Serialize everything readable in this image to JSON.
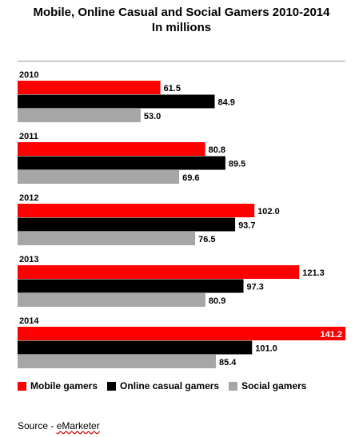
{
  "title_line1": "Mobile, Online Casual and Social Gamers 2010-2014",
  "title_line2": "In millions",
  "source_prefix": "Source - ",
  "source_name": "eMarketer",
  "chart_data": {
    "type": "bar",
    "orientation": "horizontal",
    "title": "Mobile, Online Casual and Social Gamers 2010-2014",
    "subtitle": "In millions",
    "categories": [
      "2010",
      "2011",
      "2012",
      "2013",
      "2014"
    ],
    "series": [
      {
        "name": "Mobile gamers",
        "color": "#ff0000",
        "values": [
          61.5,
          80.8,
          102.0,
          121.3,
          141.2
        ]
      },
      {
        "name": "Online casual gamers",
        "color": "#000000",
        "values": [
          84.9,
          89.5,
          93.7,
          97.3,
          101.0
        ]
      },
      {
        "name": "Social gamers",
        "color": "#a6a6a6",
        "values": [
          53.0,
          69.6,
          76.5,
          80.9,
          85.4
        ]
      }
    ],
    "value_labels": [
      [
        "61.5",
        "84.9",
        "53.0"
      ],
      [
        "80.8",
        "89.5",
        "69.6"
      ],
      [
        "102.0",
        "93.7",
        "76.5"
      ],
      [
        "121.3",
        "97.3",
        "80.9"
      ],
      [
        "141.2",
        "101.0",
        "85.4"
      ]
    ],
    "xlim": [
      0,
      141.2
    ],
    "legend": "bottom",
    "grid": false
  }
}
